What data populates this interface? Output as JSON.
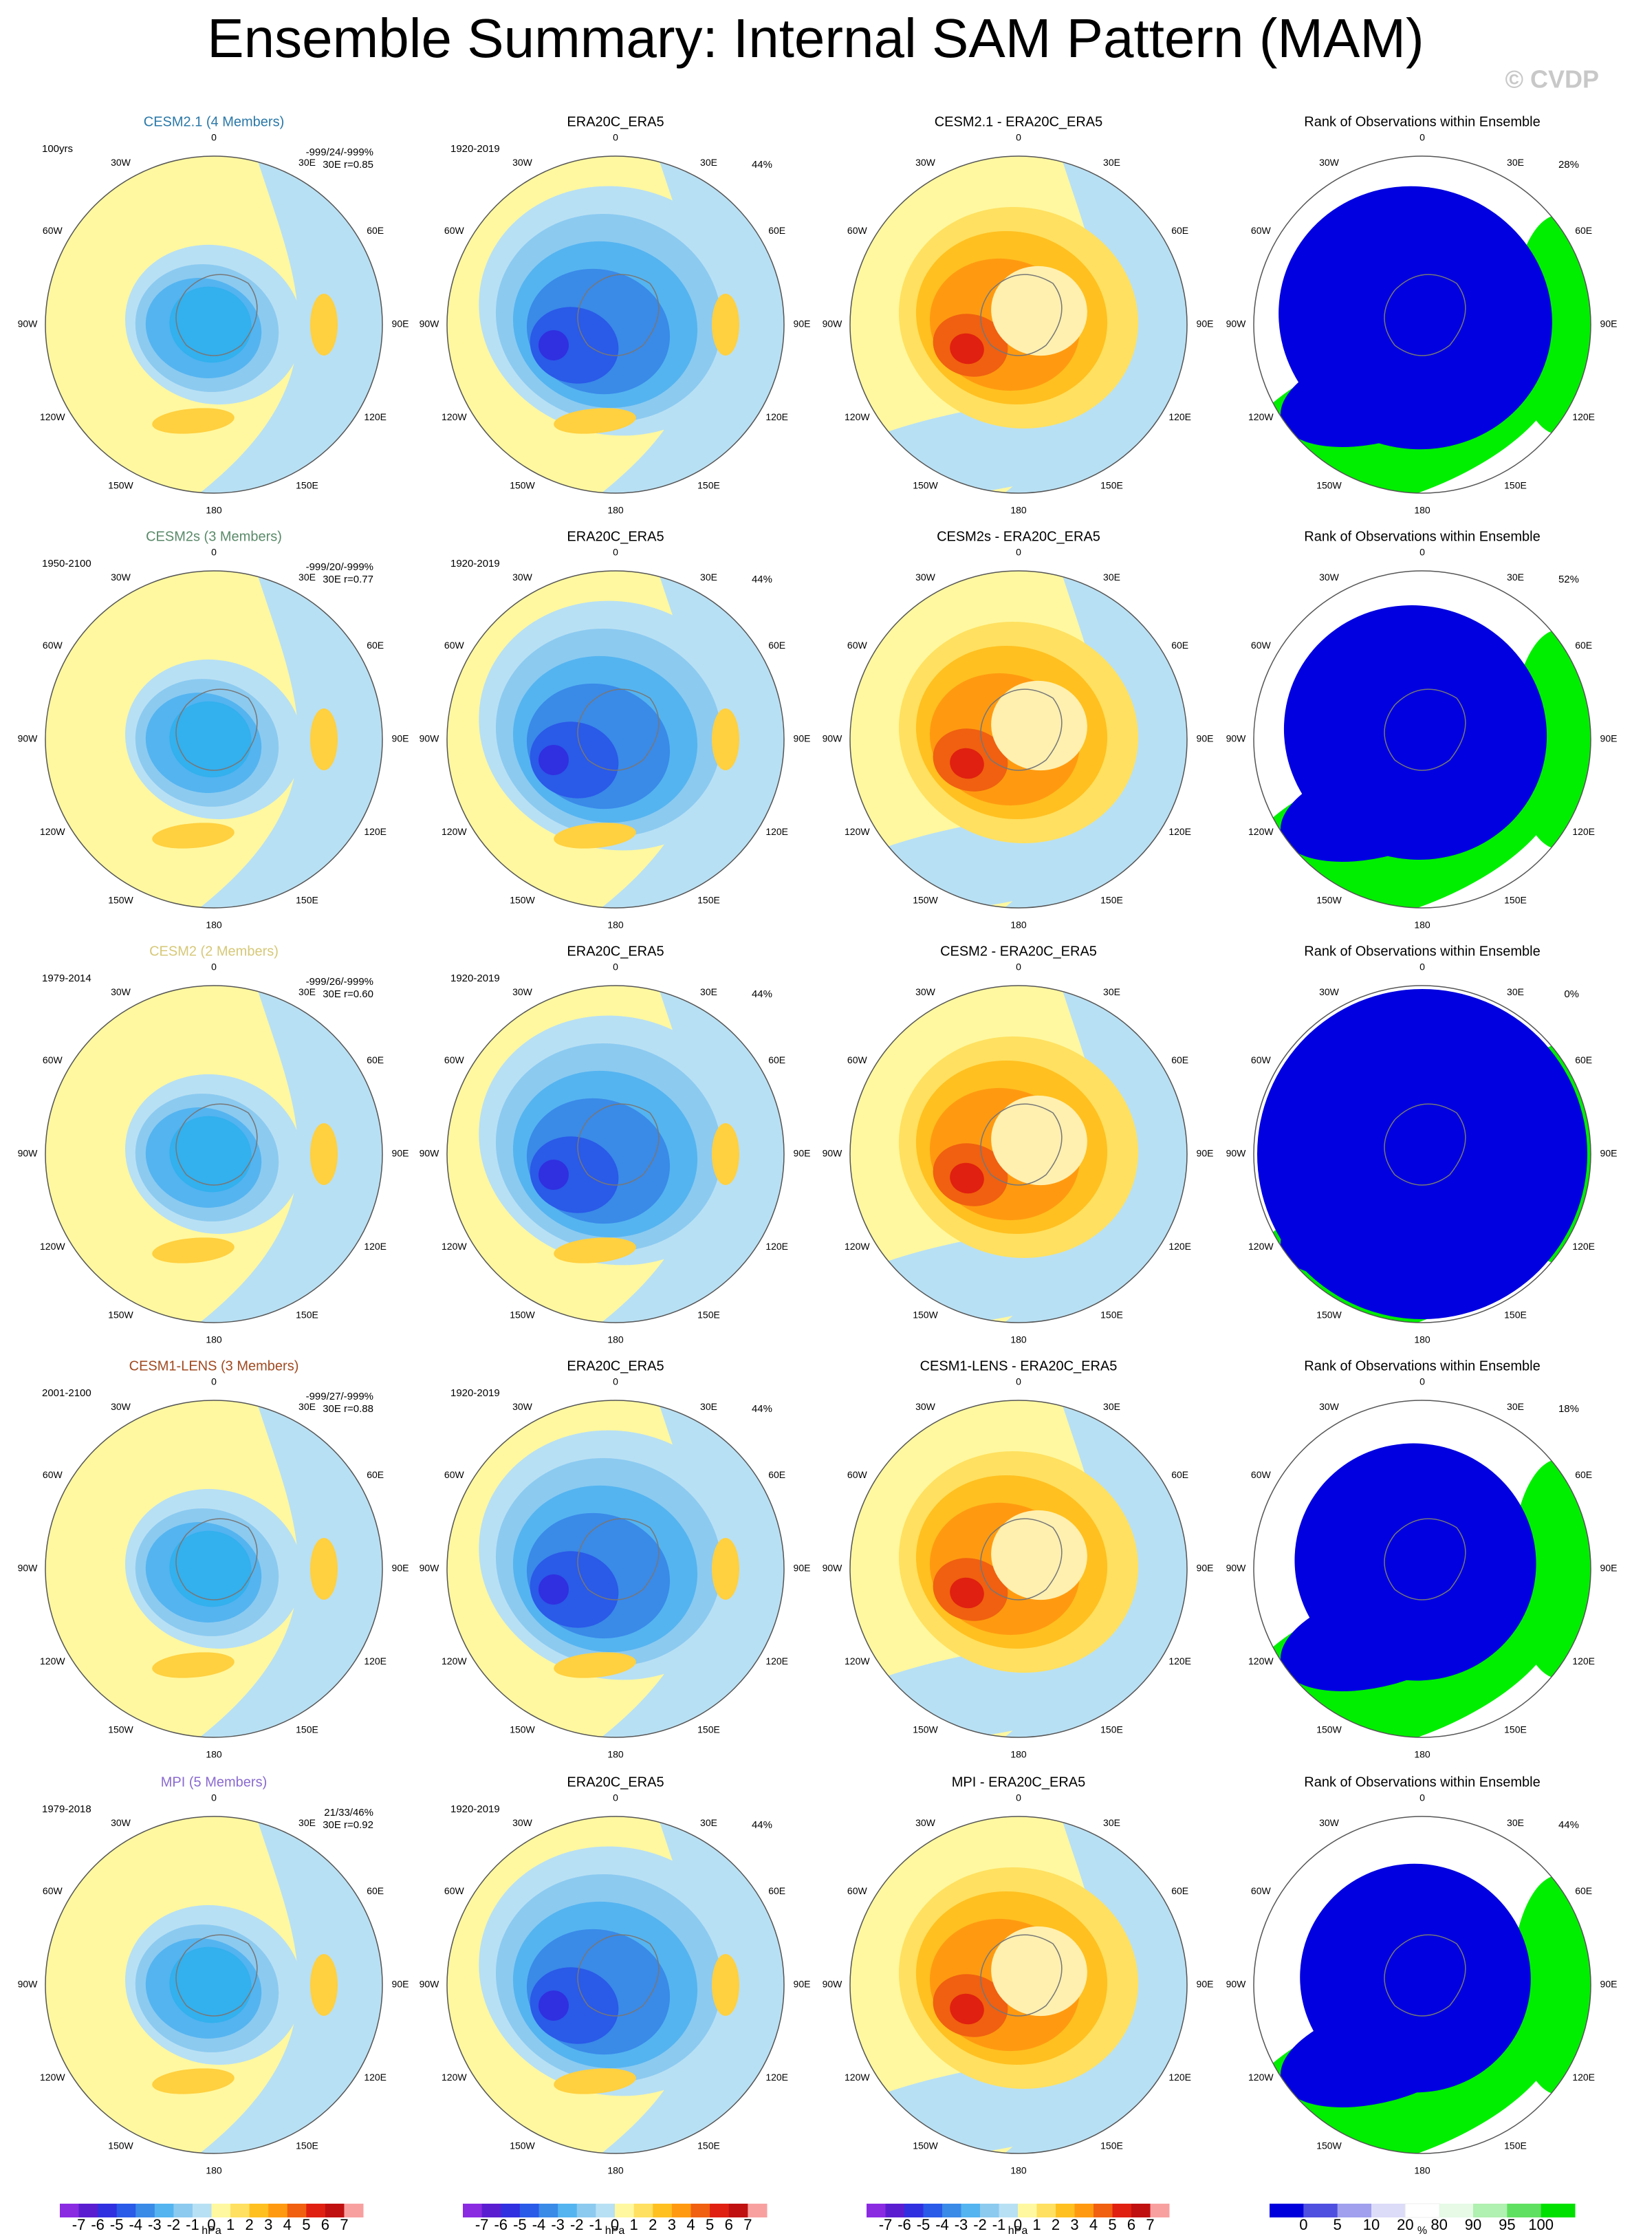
{
  "header": {
    "title": "Ensemble Summary: Internal SAM Pattern (MAM)",
    "copyright": "© CVDP"
  },
  "longitude_labels": [
    "0",
    "30E",
    "60E",
    "90E",
    "120E",
    "150E",
    "180",
    "150W",
    "120W",
    "90W",
    "60W",
    "30W"
  ],
  "rows": [
    {
      "model": {
        "title": "CESM2.1 (4 Members)",
        "title_color": "#2a78a8",
        "period": "100yrs",
        "stats": "-999/24/-999%",
        "corr": "30E r=0.85"
      },
      "obs": {
        "title": "ERA20C_ERA5",
        "period": "1920-2019",
        "pct": "44%"
      },
      "diff": {
        "title": "CESM2.1 - ERA20C_ERA5"
      },
      "rank": {
        "title": "Rank of Observations within Ensemble",
        "pct": "28%"
      }
    },
    {
      "model": {
        "title": "CESM2s (3 Members)",
        "title_color": "#5a8a6a",
        "period": "1950-2100",
        "stats": "-999/20/-999%",
        "corr": "30E r=0.77"
      },
      "obs": {
        "title": "ERA20C_ERA5",
        "period": "1920-2019",
        "pct": "44%"
      },
      "diff": {
        "title": "CESM2s - ERA20C_ERA5"
      },
      "rank": {
        "title": "Rank of Observations within Ensemble",
        "pct": "52%"
      }
    },
    {
      "model": {
        "title": "CESM2 (2 Members)",
        "title_color": "#d6c878",
        "period": "1979-2014",
        "stats": "-999/26/-999%",
        "corr": "30E r=0.60"
      },
      "obs": {
        "title": "ERA20C_ERA5",
        "period": "1920-2019",
        "pct": "44%"
      },
      "diff": {
        "title": "CESM2 - ERA20C_ERA5"
      },
      "rank": {
        "title": "Rank of Observations within Ensemble",
        "pct": "0%"
      }
    },
    {
      "model": {
        "title": "CESM1-LENS (3 Members)",
        "title_color": "#a04a20",
        "period": "2001-2100",
        "stats": "-999/27/-999%",
        "corr": "30E r=0.88"
      },
      "obs": {
        "title": "ERA20C_ERA5",
        "period": "1920-2019",
        "pct": "44%"
      },
      "diff": {
        "title": "CESM1-LENS - ERA20C_ERA5"
      },
      "rank": {
        "title": "Rank of Observations within Ensemble",
        "pct": "18%"
      }
    },
    {
      "model": {
        "title": "MPI (5 Members)",
        "title_color": "#8a6ad0",
        "period": "1979-2018",
        "stats": "21/33/46%",
        "corr": "30E r=0.92"
      },
      "obs": {
        "title": "ERA20C_ERA5",
        "period": "1920-2019",
        "pct": "44%"
      },
      "diff": {
        "title": "MPI - ERA20C_ERA5"
      },
      "rank": {
        "title": "Rank of Observations within Ensemble",
        "pct": "44%"
      }
    }
  ],
  "colorbars": {
    "hpa": {
      "labels": [
        "-7",
        "-6",
        "-5",
        "-4",
        "-3",
        "-2",
        "-1",
        "0",
        "1",
        "2",
        "3",
        "4",
        "5",
        "6",
        "7"
      ],
      "unit": "hPa",
      "palette": [
        "#8a2be2",
        "#5a1ed0",
        "#3030e0",
        "#2a5ae8",
        "#3a8ae8",
        "#54b4f0",
        "#8ccaf0",
        "#b8e0f4",
        "#fff8a0",
        "#ffe060",
        "#ffc020",
        "#ff9a10",
        "#f06010",
        "#e02010",
        "#c01010",
        "#f8a0a0"
      ]
    },
    "pct": {
      "labels": [
        "0",
        "5",
        "10",
        "20",
        "80",
        "90",
        "95",
        "100"
      ],
      "unit": "%",
      "palette": [
        "#0000dd",
        "#5050e0",
        "#a0a0ee",
        "#dcdcf8",
        "#ffffff",
        "#e6fae6",
        "#b0f0b0",
        "#60e060",
        "#00e000"
      ]
    }
  }
}
